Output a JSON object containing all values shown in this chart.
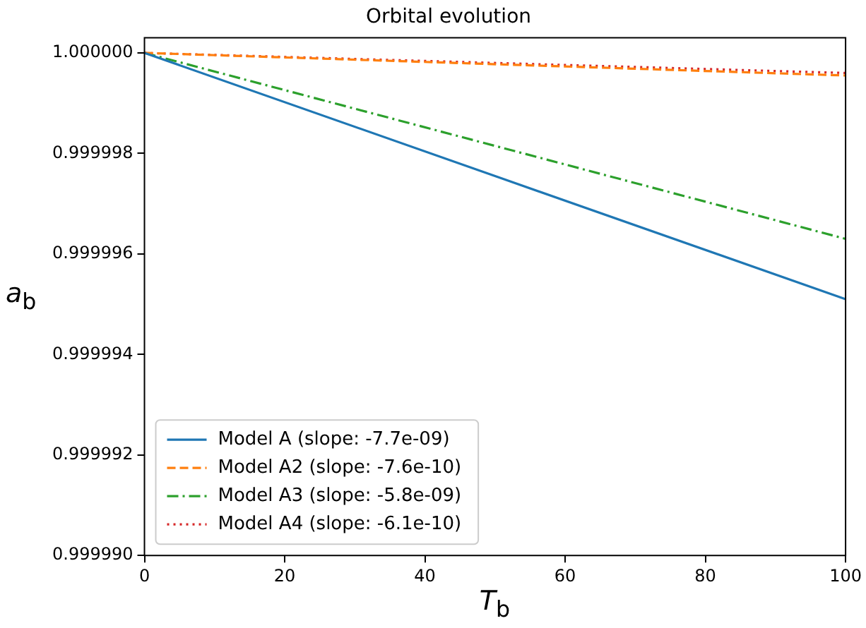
{
  "chart_data": {
    "type": "line",
    "title": "Orbital evolution",
    "xlabel": "T$_{b}$",
    "ylabel": "a$_{b}$",
    "x": [
      0,
      100
    ],
    "series": [
      {
        "name": "Model A (slope: -7.7e-09)",
        "color": "#1f77b4",
        "line_style": "solid",
        "values": [
          1.0,
          0.9999951
        ]
      },
      {
        "name": "Model A2 (slope: -7.6e-10)",
        "color": "#ff7f0e",
        "line_style": "dashed",
        "values": [
          1.0,
          0.99999955
        ]
      },
      {
        "name": "Model A3 (slope: -5.8e-09)",
        "color": "#2ca02c",
        "line_style": "dashdot",
        "values": [
          1.0,
          0.9999963
        ]
      },
      {
        "name": "Model A4 (slope: -6.1e-10)",
        "color": "#d62728",
        "line_style": "dotted",
        "values": [
          1.0,
          0.9999996
        ]
      }
    ],
    "xlim": [
      0,
      100
    ],
    "xticks": [
      0,
      20,
      40,
      60,
      80,
      100
    ],
    "ylim": [
      0.99999,
      1.0000003
    ],
    "yticks": [
      {
        "value": 0.99999,
        "label": "0.999990"
      },
      {
        "value": 0.999992,
        "label": "0.999992"
      },
      {
        "value": 0.999994,
        "label": "0.999994"
      },
      {
        "value": 0.999996,
        "label": "0.999996"
      },
      {
        "value": 0.999998,
        "label": "0.999998"
      },
      {
        "value": 1.0,
        "label": "1.000000"
      }
    ],
    "grid": false,
    "legend": "bottom left",
    "marker": "none"
  }
}
